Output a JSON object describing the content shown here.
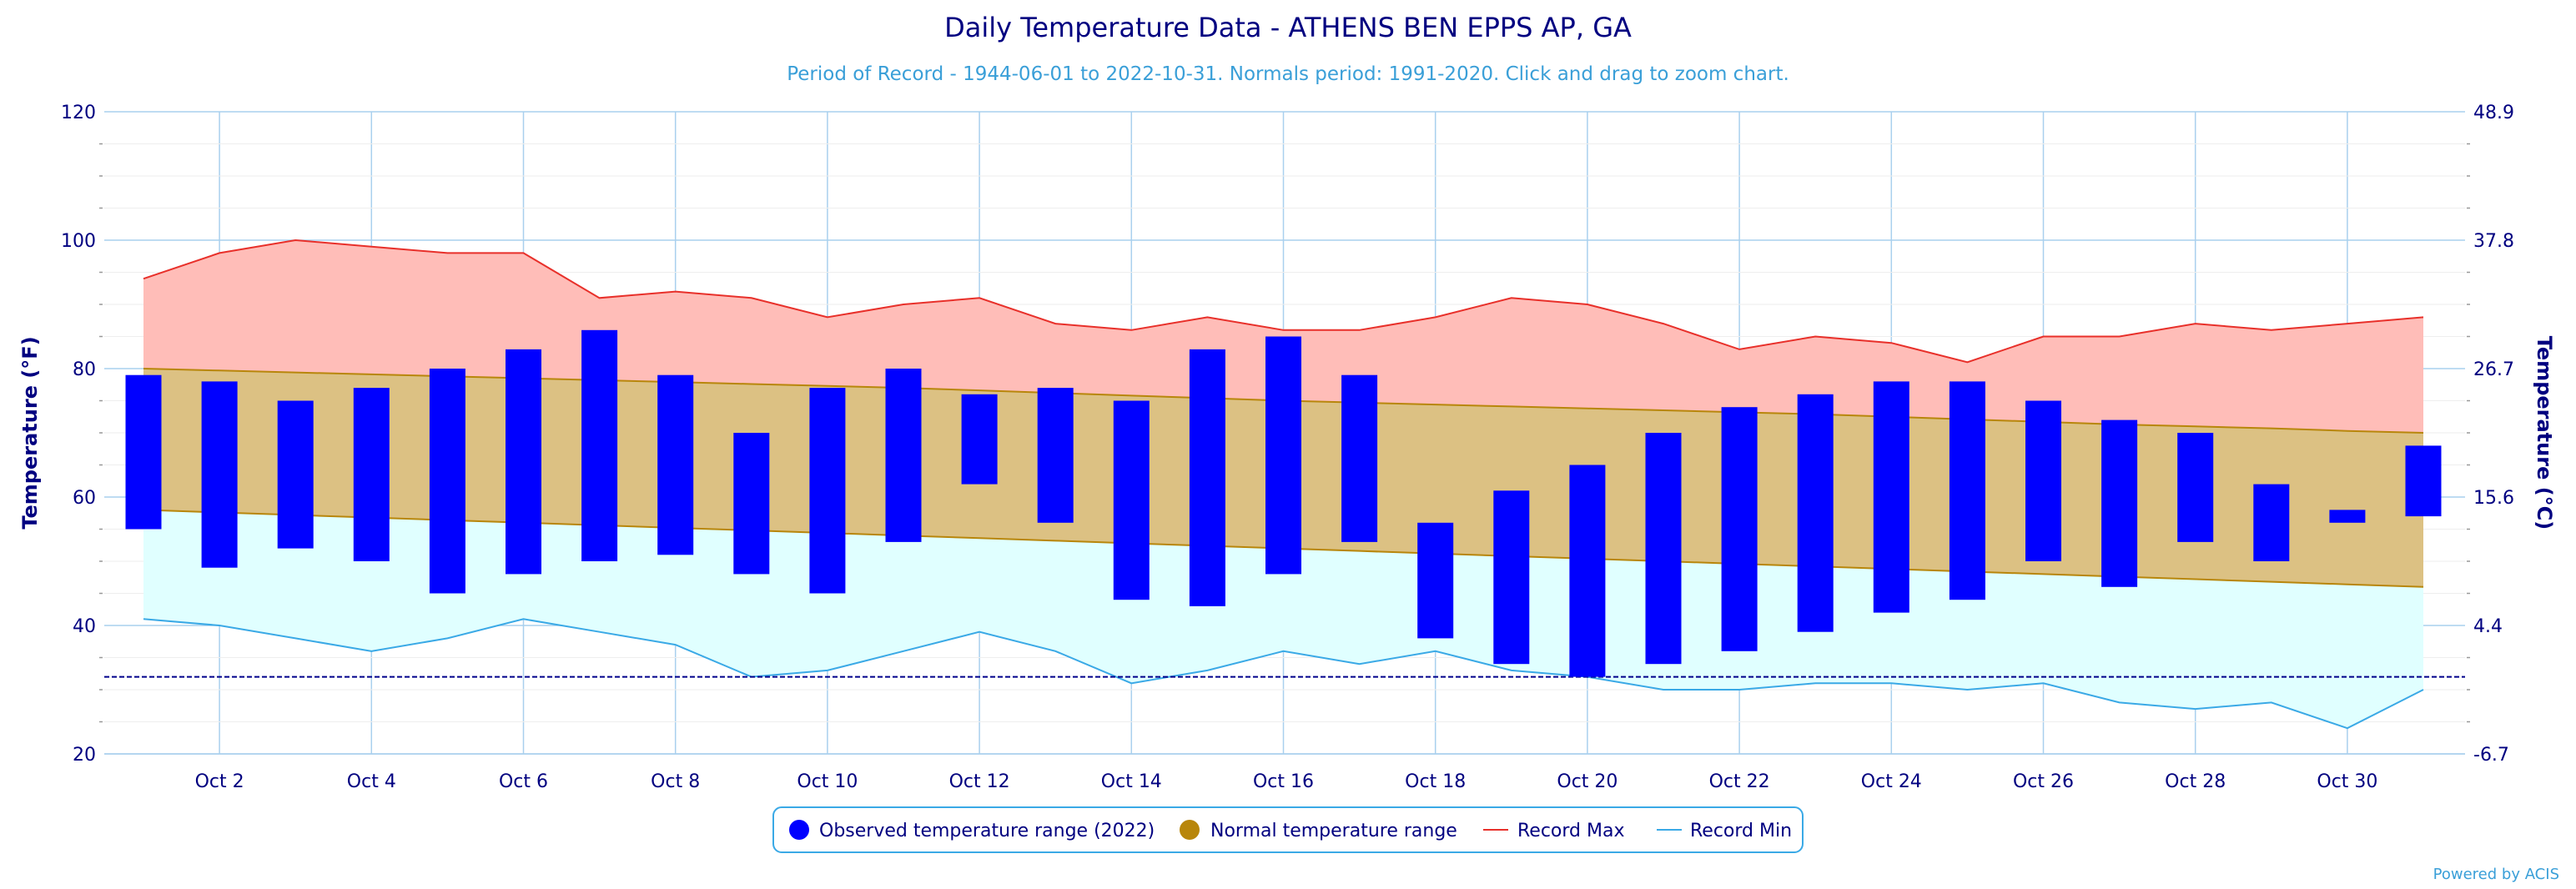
{
  "chart_data": {
    "type": "bar",
    "title": "Daily Temperature Data - ATHENS BEN EPPS AP, GA",
    "subtitle": "Period of Record - 1944-06-01 to 2022-10-31. Normals period: 1991-2020. Click and drag to zoom chart.",
    "credit": "Powered by ACIS",
    "ylabel_left": "Temperature (°F)",
    "ylabel_right": "Temperature (°C)",
    "ylim": [
      20,
      120
    ],
    "yticks_left": [
      "20",
      "40",
      "60",
      "80",
      "100",
      "120"
    ],
    "yticks_right": [
      "-6.7",
      "4.4",
      "15.6",
      "26.7",
      "37.8",
      "48.9"
    ],
    "xtick_labels": [
      "Oct 2",
      "Oct 4",
      "Oct 6",
      "Oct 8",
      "Oct 10",
      "Oct 12",
      "Oct 14",
      "Oct 16",
      "Oct 18",
      "Oct 20",
      "Oct 22",
      "Oct 24",
      "Oct 26",
      "Oct 28",
      "Oct 30"
    ],
    "days": [
      1,
      2,
      3,
      4,
      5,
      6,
      7,
      8,
      9,
      10,
      11,
      12,
      13,
      14,
      15,
      16,
      17,
      18,
      19,
      20,
      21,
      22,
      23,
      24,
      25,
      26,
      27,
      28,
      29,
      30,
      31
    ],
    "freezing_line": 32,
    "grid": true,
    "legend_position": "bottom-center",
    "colors": {
      "observed": "#0000ff",
      "normal_fill": "#dcc183",
      "normal_edge": "#b8860b",
      "normal_marker": "#b8860b",
      "record_max_fill": "#ffbdb8",
      "record_max_line": "#e8302a",
      "record_min_fill": "#e0ffff",
      "record_min_line": "#3aa9e6",
      "freezing_line": "#00008b",
      "axis_text": "#000080",
      "grid": "#a9d0ee"
    },
    "series": [
      {
        "name": "Observed temperature range (2022)",
        "high": [
          79,
          78,
          75,
          77,
          80,
          83,
          86,
          79,
          70,
          77,
          80,
          76,
          77,
          75,
          83,
          85,
          79,
          56,
          61,
          65,
          70,
          74,
          76,
          78,
          78,
          75,
          72,
          70,
          62,
          58,
          68
        ],
        "low": [
          55,
          49,
          52,
          50,
          45,
          48,
          50,
          51,
          48,
          45,
          53,
          62,
          56,
          44,
          43,
          48,
          53,
          38,
          34,
          32,
          34,
          36,
          39,
          42,
          44,
          50,
          46,
          53,
          50,
          56,
          57
        ]
      },
      {
        "name": "Normal temperature range",
        "high": [
          80,
          79.7,
          79.4,
          79.1,
          78.8,
          78.5,
          78.2,
          77.9,
          77.6,
          77.3,
          77,
          76.6,
          76.2,
          75.8,
          75.4,
          75,
          74.7,
          74.4,
          74.1,
          73.8,
          73.5,
          73.2,
          72.9,
          72.5,
          72.1,
          71.7,
          71.3,
          71,
          70.7,
          70.3,
          70
        ],
        "low": [
          58,
          57.6,
          57.2,
          56.8,
          56.4,
          56,
          55.6,
          55.2,
          54.8,
          54.4,
          54,
          53.6,
          53.2,
          52.8,
          52.4,
          52,
          51.6,
          51.2,
          50.8,
          50.4,
          50,
          49.6,
          49.2,
          48.8,
          48.4,
          48,
          47.6,
          47.2,
          46.8,
          46.4,
          46
        ]
      },
      {
        "name": "Record Max",
        "values": [
          94,
          98,
          100,
          99,
          98,
          98,
          91,
          92,
          91,
          88,
          90,
          91,
          87,
          86,
          88,
          86,
          86,
          88,
          91,
          90,
          87,
          83,
          85,
          84,
          81,
          85,
          85,
          87,
          86,
          87,
          88
        ]
      },
      {
        "name": "Record Min",
        "values": [
          41,
          40,
          38,
          36,
          38,
          41,
          39,
          37,
          32,
          33,
          36,
          39,
          36,
          31,
          33,
          36,
          34,
          36,
          33,
          32,
          30,
          30,
          31,
          31,
          30,
          31,
          28,
          27,
          28,
          24,
          30
        ]
      }
    ]
  }
}
